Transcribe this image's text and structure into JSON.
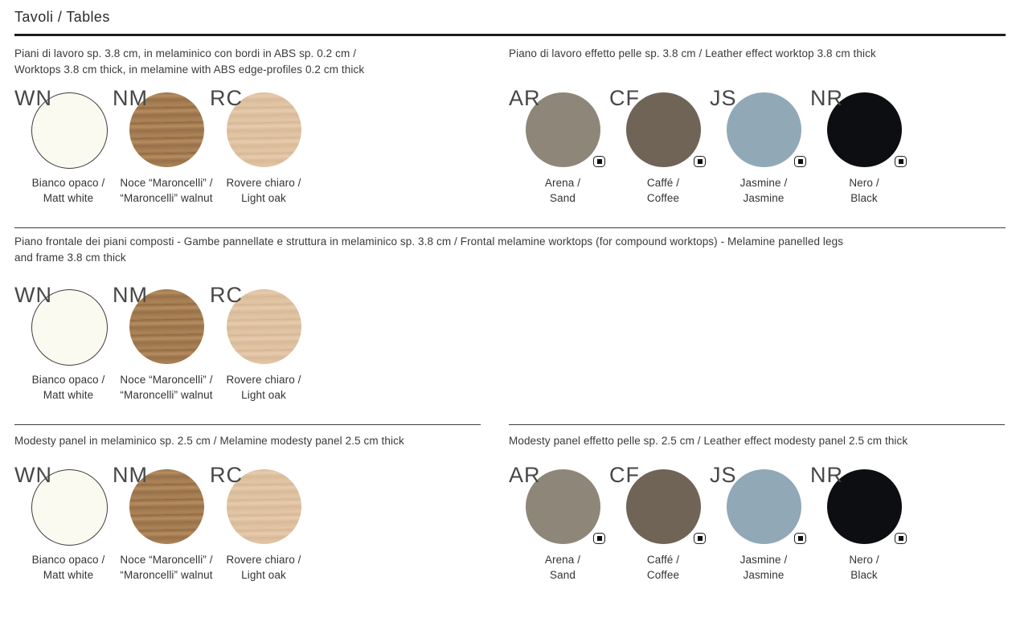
{
  "page": {
    "title": "Tavoli / Tables"
  },
  "sections": {
    "worktops_melamine": {
      "heading": "Piani di lavoro sp. 3.8 cm, in melaminico con bordi in ABS sp. 0.2 cm /\nWorktops 3.8 cm thick, in melamine with ABS edge-profiles 0.2 cm thick"
    },
    "worktops_leather": {
      "heading": "Piano di lavoro effetto pelle sp. 3.8 cm / Leather effect worktop 3.8 cm thick"
    },
    "frontal_panels": {
      "heading": "Piano frontale dei piani composti - Gambe pannellate e struttura in melaminico sp. 3.8 cm / Frontal melamine worktops (for compound worktops) - Melamine panelled legs\nand frame 3.8 cm thick"
    },
    "modesty_melamine": {
      "heading": "Modesty panel in melaminico sp. 2.5 cm / Melamine modesty panel 2.5 cm thick"
    },
    "modesty_leather": {
      "heading": "Modesty panel effetto pelle sp. 2.5 cm / Leather effect modesty panel 2.5 cm thick"
    }
  },
  "finishes": {
    "WN": {
      "code": "WN",
      "label": "Bianco opaco /\nMatt white",
      "color": "#fbfaf0",
      "outline": "#3d3d3d"
    },
    "NM": {
      "code": "NM",
      "label": "Noce “Maroncelli” /\n“Maroncelli” walnut",
      "color": "#a27a50",
      "texture": "wood",
      "texture_colors": [
        "#8a6540",
        "#b68e60",
        "#96714a",
        "#ab8357"
      ]
    },
    "RC": {
      "code": "RC",
      "label": "Rovere chiaro /\nLight oak",
      "color": "#ddc0a0",
      "texture": "wood",
      "texture_colors": [
        "#d2b38e",
        "#e6ccae",
        "#d8ba97",
        "#e1c5a5"
      ]
    },
    "AR": {
      "code": "AR",
      "label": "Arena /\nSand",
      "color": "#8e8678"
    },
    "CF": {
      "code": "CF",
      "label": "Caffé /\nCoffee",
      "color": "#6f6456"
    },
    "JS": {
      "code": "JS",
      "label": "Jasmine /\nJasmine",
      "color": "#91a8b7"
    },
    "NR": {
      "code": "NR",
      "label": "Nero /\nBlack",
      "color": "#0d0e12"
    }
  },
  "icons": {
    "leather_effect_icon": "rounded-square-with-dot"
  }
}
